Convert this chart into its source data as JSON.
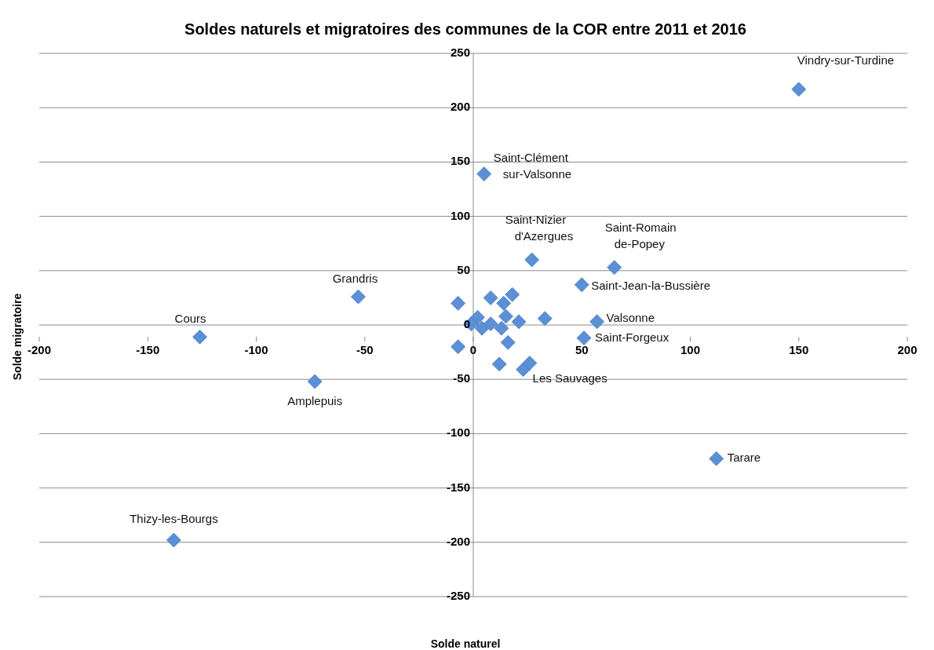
{
  "chart_data": {
    "type": "scatter",
    "title": "Soldes naturels et migratoires des communes de la COR entre 2011 et 2016",
    "xlabel": "Solde naturel",
    "ylabel": "Solde migratoire",
    "series": [
      {
        "color": "#5b8fd6",
        "x": [
          150,
          5,
          27,
          65,
          50,
          57,
          51,
          23,
          -53,
          -126,
          -73,
          112,
          -138,
          -7,
          8,
          18,
          14,
          15,
          2,
          -1,
          4,
          8,
          13,
          21,
          33,
          -7,
          16,
          12,
          26
        ],
        "values": [
          217,
          139,
          60,
          53,
          37,
          3,
          -12,
          -41,
          26,
          -11,
          -52,
          -123,
          -198,
          20,
          25,
          28,
          20,
          8,
          7,
          1,
          -3,
          1,
          -3,
          3,
          6,
          -20,
          -16,
          -36,
          -35
        ]
      }
    ],
    "annotations": [
      {
        "text": "Vindry-sur-Turdine",
        "x": 150,
        "y": 217
      },
      {
        "text": "Saint-Clément\nsur-Valsonne",
        "x": 5,
        "y": 139
      },
      {
        "text": "Saint-Nizier\nd'Azergues",
        "x": 27,
        "y": 60
      },
      {
        "text": "Saint-Romain\nde-Popey",
        "x": 65,
        "y": 53
      },
      {
        "text": "Saint-Jean-la-Bussière",
        "x": 50,
        "y": 37
      },
      {
        "text": "Valsonne",
        "x": 57,
        "y": 3
      },
      {
        "text": "Saint-Forgeux",
        "x": 51,
        "y": -12
      },
      {
        "text": "Les Sauvages",
        "x": 23,
        "y": -41
      },
      {
        "text": "Grandris",
        "x": -53,
        "y": 26
      },
      {
        "text": "Cours",
        "x": -126,
        "y": -11
      },
      {
        "text": "Amplepuis",
        "x": -73,
        "y": -52
      },
      {
        "text": "Tarare",
        "x": 112,
        "y": -123
      },
      {
        "text": "Thizy-les-Bourgs",
        "x": -138,
        "y": -198
      }
    ],
    "xlim": [
      -200,
      200
    ],
    "ylim": [
      -250,
      250
    ],
    "xticks": [
      -200,
      -150,
      -100,
      -50,
      0,
      50,
      100,
      150,
      200
    ],
    "yticks": [
      -250,
      -200,
      -150,
      -100,
      -50,
      0,
      50,
      100,
      150,
      200,
      250
    ],
    "grid": "y",
    "marker": "diamond"
  }
}
